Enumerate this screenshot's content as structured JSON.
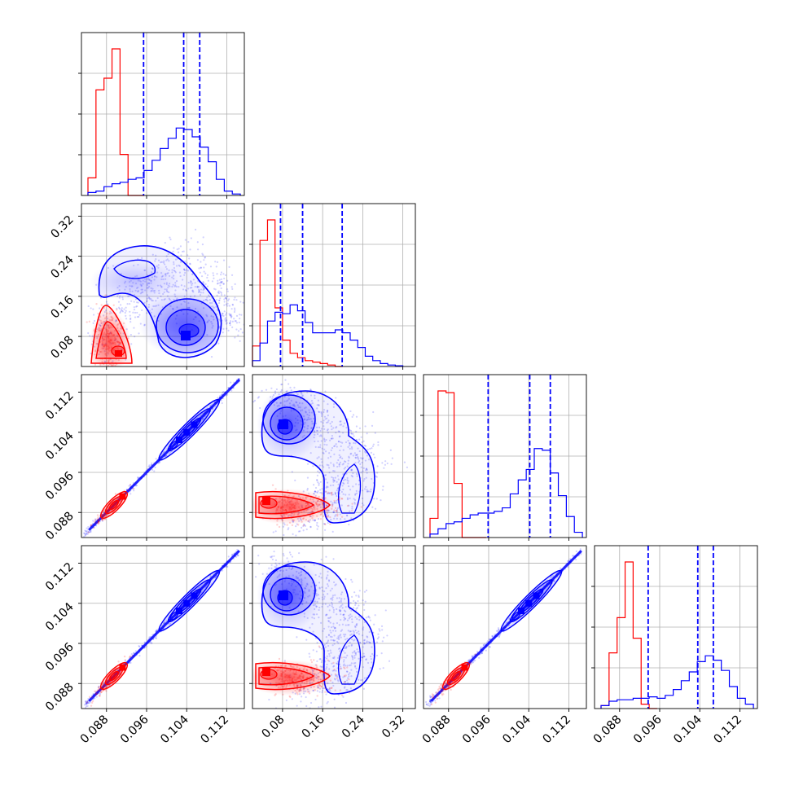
{
  "colors": {
    "red": "#ff0000",
    "blue": "#0000ff",
    "grid": "#b0b0b0"
  },
  "ticks": {
    "a": [
      "0.088",
      "0.096",
      "0.104",
      "0.112"
    ],
    "b": [
      "0.08",
      "0.16",
      "0.24",
      "0.32"
    ]
  },
  "chart_data": {
    "type": "corner",
    "parameters": 4,
    "axis_ranges": {
      "p0": [
        0.083,
        0.1155
      ],
      "p1": [
        0.02,
        0.345
      ],
      "p2": [
        0.083,
        0.1155
      ],
      "p3": [
        0.083,
        0.1155
      ]
    },
    "axis_ticks": {
      "p0": [
        0.088,
        0.096,
        0.104,
        0.112
      ],
      "p1": [
        0.08,
        0.16,
        0.24,
        0.32
      ],
      "p2": [
        0.088,
        0.096,
        0.104,
        0.112
      ],
      "p3": [
        0.088,
        0.096,
        0.104,
        0.112
      ]
    },
    "grid": true,
    "series": [
      {
        "name": "",
        "color": "#ff0000",
        "histograms": {
          "p0": {
            "edges": [
              0.0843,
              0.0859,
              0.0875,
              0.0891,
              0.0907,
              0.0923,
              0.0939,
              0.0955
            ],
            "counts": [
              0.12,
              0.72,
              0.8,
              1.0,
              0.28,
              0,
              0
            ]
          },
          "p1": {
            "edges": [
              0.02,
              0.035,
              0.05,
              0.065,
              0.08,
              0.095,
              0.11,
              0.125,
              0.14,
              0.155,
              0.17,
              0.185,
              0.2
            ],
            "counts": [
              0.14,
              0.86,
              1.0,
              0.4,
              0.18,
              0.09,
              0.06,
              0.04,
              0.03,
              0.02,
              0.01,
              0
            ]
          },
          "p2": {
            "edges": [
              0.0843,
              0.0859,
              0.0875,
              0.0891,
              0.0907,
              0.0923,
              0.0939,
              0.0955
            ],
            "counts": [
              0.11,
              0.84,
              0.83,
              0.31,
              0,
              0,
              0
            ]
          },
          "p3": {
            "edges": [
              0.0843,
              0.0859,
              0.0875,
              0.0891,
              0.0907,
              0.0923,
              0.0939,
              0.0955
            ],
            "counts": [
              0.02,
              0.38,
              0.62,
              1.0,
              0.48,
              0.03,
              0
            ]
          }
        }
      },
      {
        "name": "",
        "color": "#0000ff",
        "quantiles": {
          "p0": [
            0.0954,
            0.1034,
            0.1066
          ],
          "p1": [
            0.076,
            0.12,
            0.199
          ],
          "p2": [
            0.0959,
            0.1042,
            0.1083
          ],
          "p3": [
            0.0937,
            0.1036,
            0.1067
          ]
        },
        "histograms": {
          "p0": {
            "edges": [
              0.0843,
              0.0859,
              0.0875,
              0.0891,
              0.0907,
              0.0923,
              0.0939,
              0.0955,
              0.0971,
              0.0987,
              0.1003,
              0.1019,
              0.1035,
              0.1051,
              0.1067,
              0.1083,
              0.1099,
              0.1115,
              0.1131,
              0.1147
            ],
            "counts": [
              0.02,
              0.03,
              0.06,
              0.08,
              0.09,
              0.11,
              0.12,
              0.17,
              0.24,
              0.32,
              0.39,
              0.46,
              0.45,
              0.4,
              0.33,
              0.23,
              0.11,
              0.03,
              0.01
            ]
          },
          "p1": {
            "edges": [
              0.02,
              0.035,
              0.05,
              0.065,
              0.08,
              0.095,
              0.11,
              0.125,
              0.14,
              0.155,
              0.17,
              0.185,
              0.2,
              0.215,
              0.23,
              0.245,
              0.26,
              0.275,
              0.29,
              0.305,
              0.32
            ],
            "counts": [
              0.04,
              0.16,
              0.31,
              0.37,
              0.36,
              0.42,
              0.38,
              0.3,
              0.23,
              0.23,
              0.23,
              0.25,
              0.23,
              0.18,
              0.13,
              0.07,
              0.04,
              0.02,
              0.01,
              0.005
            ]
          },
          "p2": {
            "edges": [
              0.0843,
              0.0859,
              0.0875,
              0.0891,
              0.0907,
              0.0923,
              0.0939,
              0.0955,
              0.0971,
              0.0987,
              0.1003,
              0.1019,
              0.1035,
              0.1051,
              0.1067,
              0.1083,
              0.1099,
              0.1115,
              0.1131,
              0.1147
            ],
            "counts": [
              0.02,
              0.05,
              0.08,
              0.09,
              0.11,
              0.13,
              0.14,
              0.14,
              0.15,
              0.17,
              0.25,
              0.33,
              0.39,
              0.51,
              0.5,
              0.37,
              0.24,
              0.12,
              0.03
            ]
          },
          "p3": {
            "edges": [
              0.0843,
              0.0859,
              0.0875,
              0.0891,
              0.0907,
              0.0923,
              0.0939,
              0.0955,
              0.0971,
              0.0987,
              0.1003,
              0.1019,
              0.1035,
              0.1051,
              0.1067,
              0.1083,
              0.1099,
              0.1115,
              0.1131,
              0.1147
            ],
            "counts": [
              0.02,
              0.05,
              0.06,
              0.06,
              0.07,
              0.07,
              0.08,
              0.07,
              0.09,
              0.13,
              0.19,
              0.25,
              0.32,
              0.36,
              0.33,
              0.26,
              0.15,
              0.07,
              0.03
            ]
          }
        }
      }
    ]
  }
}
